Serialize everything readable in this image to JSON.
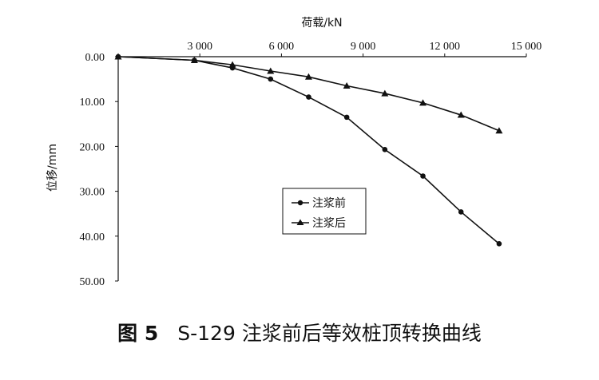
{
  "figure": {
    "caption_label": "图 5",
    "caption_title": "S-129 注浆前后等效桩顶转换曲线"
  },
  "chart_data": {
    "type": "line",
    "xlabel": "荷载/kN",
    "ylabel": "位移/mm",
    "xlim": [
      0,
      15000
    ],
    "ylim": [
      0,
      50
    ],
    "y_reversed": true,
    "x_axis_position": "top",
    "grid": false,
    "legend_position": "center",
    "x_ticks": [
      {
        "value": 3000,
        "label": "3 000"
      },
      {
        "value": 6000,
        "label": "6 000"
      },
      {
        "value": 9000,
        "label": "9 000"
      },
      {
        "value": 12000,
        "label": "12 000"
      },
      {
        "value": 15000,
        "label": "15 000"
      }
    ],
    "y_ticks": [
      {
        "value": 0,
        "label": "0.00"
      },
      {
        "value": 10,
        "label": "10.00"
      },
      {
        "value": 20,
        "label": "20.00"
      },
      {
        "value": 30,
        "label": "30.00"
      },
      {
        "value": 40,
        "label": "40.00"
      },
      {
        "value": 50,
        "label": "50.00"
      }
    ],
    "series": [
      {
        "name": "注浆前",
        "marker": "circle",
        "x": [
          0,
          2800,
          4200,
          5600,
          7000,
          8400,
          9800,
          11200,
          12600,
          14000
        ],
        "y": [
          0,
          0.8,
          2.5,
          5.0,
          9.0,
          13.5,
          20.7,
          26.6,
          34.6,
          41.7
        ]
      },
      {
        "name": "注浆后",
        "marker": "triangle",
        "x": [
          0,
          2800,
          4200,
          5600,
          7000,
          8400,
          9800,
          11200,
          12600,
          14000
        ],
        "y": [
          0,
          0.8,
          1.8,
          3.2,
          4.5,
          6.5,
          8.2,
          10.3,
          13.0,
          16.5
        ]
      }
    ]
  }
}
